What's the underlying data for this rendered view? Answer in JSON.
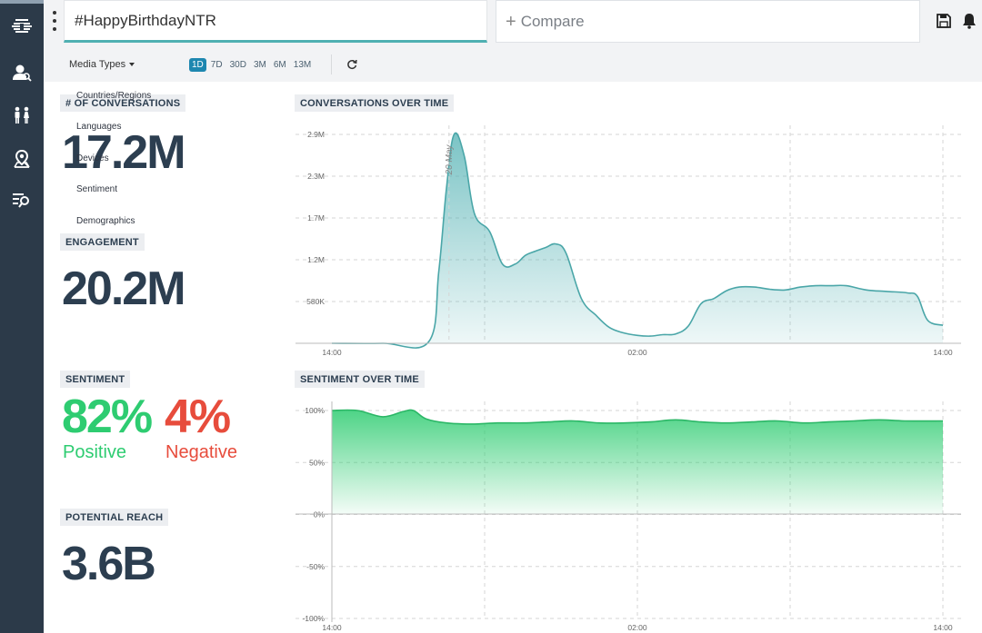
{
  "sidebar": {
    "items": [
      {
        "icon": "brand-logo-icon"
      },
      {
        "icon": "user-search-icon"
      },
      {
        "icon": "people-icon"
      },
      {
        "icon": "map-pin-icon"
      },
      {
        "icon": "list-search-icon"
      }
    ]
  },
  "topbar": {
    "search_value": "#HappyBirthdayNTR",
    "compare_label": "Compare",
    "compare_plus": "+"
  },
  "filters": {
    "media_types": "Media Types",
    "ranges": [
      "1D",
      "7D",
      "30D",
      "3M",
      "6M",
      "13M"
    ],
    "active_range": "1D",
    "dropdown_items": [
      "Countries/Regions",
      "Languages",
      "Devices",
      "Sentiment",
      "Demographics"
    ]
  },
  "stats": {
    "conversations_label": "# OF CONVERSATIONS",
    "conversations_value": "17.2M",
    "engagement_label": "ENGAGEMENT",
    "engagement_value": "20.2M",
    "sentiment_label": "SENTIMENT",
    "positive_value": "82%",
    "positive_label": "Positive",
    "negative_value": "4%",
    "negative_label": "Negative",
    "reach_label": "POTENTIAL REACH",
    "reach_value": "3.6B"
  },
  "colors": {
    "sidebar": "#2c3a49",
    "accent_teal": "#4fb0b2",
    "positive": "#2ecc71",
    "negative": "#e74c3c",
    "text_dark": "#2c3e50",
    "active_range": "#1e87b0"
  },
  "chart_data": [
    {
      "type": "area",
      "title": "CONVERSATIONS OVER TIME",
      "x_tick_labels": [
        "14:00",
        "02:00",
        "14:00"
      ],
      "y_tick_labels": [
        "580K",
        "1.2M",
        "1.7M",
        "2.3M",
        "2.9M"
      ],
      "ylim": [
        0,
        2.9
      ],
      "y_ticks": [
        0.58,
        1.16,
        1.74,
        2.32,
        2.9
      ],
      "annotation": "20 May",
      "annotation_x": 4.6,
      "x_range": [
        0,
        24
      ],
      "x": [
        0,
        2,
        3.8,
        4.2,
        4.5,
        4.8,
        5.2,
        5.6,
        6.2,
        6.7,
        7.2,
        7.6,
        8.0,
        8.4,
        8.8,
        9.2,
        9.8,
        10.4,
        10.9,
        11.4,
        12.0,
        12.5,
        13.0,
        13.5,
        14.0,
        14.5,
        15.0,
        15.5,
        16.0,
        16.6,
        17.2,
        17.8,
        18.4,
        19.0,
        19.6,
        20.2,
        21.0,
        21.8,
        22.6,
        23.0,
        23.4,
        24.0
      ],
      "y": [
        0,
        0,
        0.02,
        1.0,
        2.15,
        2.9,
        2.6,
        1.8,
        1.55,
        1.1,
        1.1,
        1.22,
        1.28,
        1.33,
        1.38,
        1.25,
        0.62,
        0.38,
        0.22,
        0.15,
        0.11,
        0.1,
        0.12,
        0.13,
        0.24,
        0.55,
        0.62,
        0.73,
        0.78,
        0.78,
        0.75,
        0.74,
        0.78,
        0.8,
        0.8,
        0.8,
        0.74,
        0.72,
        0.7,
        0.65,
        0.32,
        0.25
      ]
    },
    {
      "type": "area",
      "title": "SENTIMENT OVER TIME",
      "x_tick_labels": [
        "14:00",
        "02:00",
        "14:00"
      ],
      "y_tick_labels": [
        "100%",
        "50%",
        "0%",
        "-50%",
        "-100%"
      ],
      "ylim": [
        -100,
        100
      ],
      "y_ticks": [
        100,
        50,
        0,
        -50,
        -100
      ],
      "x_range": [
        0,
        24
      ],
      "x": [
        0,
        1.0,
        2.0,
        2.8,
        3.2,
        3.7,
        4.5,
        5.5,
        6.5,
        7.5,
        8.5,
        9.5,
        10.5,
        11.5,
        12.5,
        13.5,
        14.5,
        15.5,
        16.5,
        17.5,
        18.5,
        19.5,
        20.5,
        21.5,
        22.5,
        24.0
      ],
      "y": [
        100,
        100,
        94,
        99,
        100,
        92,
        88,
        87,
        88,
        88,
        89,
        90,
        88,
        88,
        89,
        91,
        89,
        88,
        89,
        90,
        88,
        89,
        90,
        91,
        90,
        90
      ]
    }
  ]
}
